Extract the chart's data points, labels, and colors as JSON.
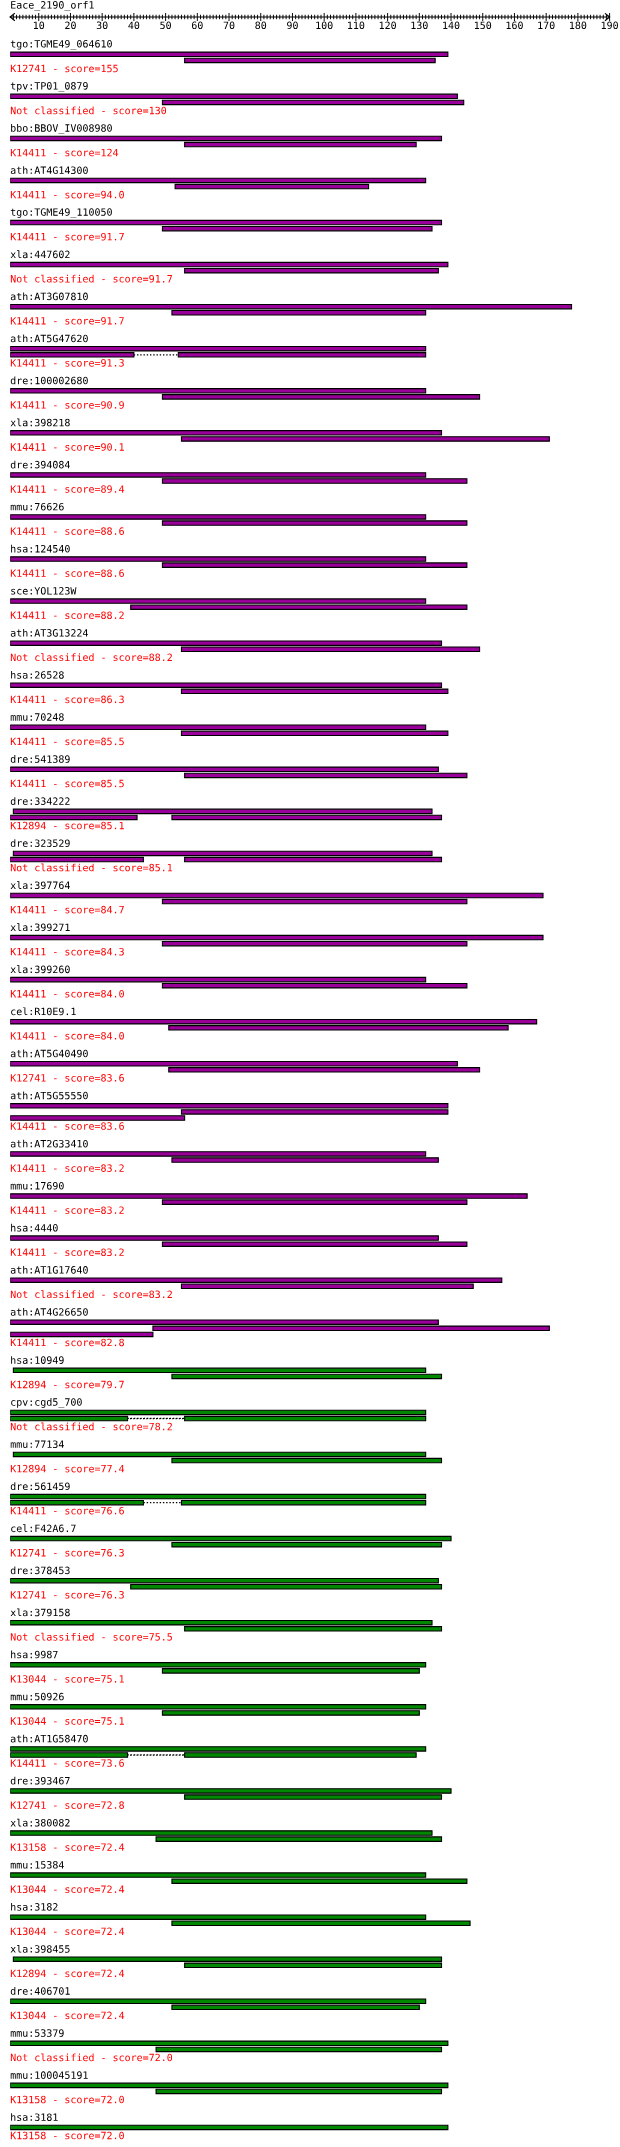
{
  "chart_data": {
    "type": "bar",
    "orientation": "horizontal",
    "title": "Eace_2190_orf1",
    "categories": [
      "tgo:TGME49_064610",
      "tpv:TP01_0879",
      "bbo:BBOV_IV008980",
      "ath:AT4G14300",
      "tgo:TGME49_110050",
      "xla:447602",
      "ath:AT3G07810",
      "ath:AT5G47620",
      "dre:100002680",
      "xla:398218",
      "dre:394084",
      "mmu:76626",
      "hsa:124540",
      "sce:YOL123W",
      "ath:AT3G13224",
      "hsa:26528",
      "mmu:70248",
      "dre:541389",
      "dre:334222",
      "dre:323529",
      "xla:397764",
      "xla:399271",
      "xla:399260",
      "cel:R10E9.1",
      "ath:AT5G40490",
      "ath:AT5G55550",
      "ath:AT2G33410",
      "mmu:17690",
      "hsa:4440",
      "ath:AT1G17640",
      "ath:AT4G26650",
      "hsa:10949",
      "cpv:cgd5_700",
      "mmu:77134",
      "dre:561459",
      "cel:F42A6.7",
      "dre:378453",
      "xla:379158",
      "hsa:9987",
      "mmu:50926",
      "ath:AT1G58470",
      "dre:393467",
      "xla:380082",
      "mmu:15384",
      "hsa:3182",
      "xla:398455",
      "dre:406701",
      "mmu:53379",
      "mmu:100045191",
      "hsa:3181"
    ],
    "series": [
      {
        "base": [
          1,
          1,
          1,
          1,
          1,
          1,
          1,
          1,
          1,
          1,
          1,
          1,
          1,
          1,
          1,
          1,
          1,
          1,
          2,
          2,
          1,
          1,
          1,
          1,
          1,
          1,
          1,
          1,
          1,
          1,
          1,
          2,
          1,
          2,
          1,
          1,
          1,
          1,
          1,
          1,
          1,
          1,
          1,
          1,
          1,
          2,
          1,
          1,
          1,
          1
        ],
        "values": [
          138,
          141,
          136,
          131,
          136,
          138,
          177,
          131,
          131,
          136,
          131,
          131,
          131,
          131,
          136,
          136,
          131,
          135,
          132,
          132,
          168,
          168,
          131,
          166,
          141,
          138,
          131,
          163,
          135,
          155,
          135,
          130,
          131,
          130,
          131,
          139,
          135,
          133,
          131,
          131,
          131,
          139,
          133,
          131,
          131,
          135,
          131,
          138,
          138,
          138
        ],
        "colors": [
          "#990099",
          "#990099",
          "#990099",
          "#990099",
          "#990099",
          "#990099",
          "#990099",
          "#990099",
          "#990099",
          "#990099",
          "#990099",
          "#990099",
          "#990099",
          "#990099",
          "#990099",
          "#990099",
          "#990099",
          "#990099",
          "#990099",
          "#990099",
          "#990099",
          "#990099",
          "#990099",
          "#990099",
          "#990099",
          "#990099",
          "#990099",
          "#990099",
          "#990099",
          "#990099",
          "#990099",
          "#008800",
          "#008800",
          "#008800",
          "#008800",
          "#008800",
          "#008800",
          "#008800",
          "#008800",
          "#008800",
          "#008800",
          "#008800",
          "#008800",
          "#008800",
          "#008800",
          "#008800",
          "#008800",
          "#008800",
          "#008800",
          "#008800"
        ]
      },
      {
        "base": [
          56,
          49,
          56,
          53,
          49,
          56,
          52,
          54,
          49,
          55,
          49,
          49,
          49,
          39,
          55,
          55,
          55,
          56,
          52,
          56,
          49,
          49,
          49,
          51,
          51,
          55,
          52,
          49,
          49,
          55,
          46,
          52,
          56,
          52,
          55,
          52,
          39,
          56,
          49,
          49,
          56,
          56,
          47,
          52,
          52,
          56,
          52,
          47,
          47,
          null
        ],
        "values": [
          79,
          95,
          73,
          61,
          85,
          80,
          80,
          78,
          100,
          116,
          96,
          96,
          96,
          106,
          94,
          84,
          84,
          89,
          85,
          81,
          96,
          96,
          96,
          107,
          98,
          84,
          84,
          96,
          96,
          92,
          125,
          85,
          76,
          85,
          77,
          85,
          98,
          81,
          81,
          81,
          73,
          81,
          90,
          93,
          94,
          81,
          78,
          90,
          90,
          null
        ],
        "colors": [
          "#990099",
          "#990099",
          "#990099",
          "#990099",
          "#990099",
          "#990099",
          "#990099",
          "#990099",
          "#990099",
          "#990099",
          "#990099",
          "#990099",
          "#990099",
          "#990099",
          "#990099",
          "#990099",
          "#990099",
          "#990099",
          "#990099",
          "#990099",
          "#990099",
          "#990099",
          "#990099",
          "#990099",
          "#990099",
          "#990099",
          "#990099",
          "#990099",
          "#990099",
          "#990099",
          "#990099",
          "#008800",
          "#008800",
          "#008800",
          "#008800",
          "#008800",
          "#008800",
          "#008800",
          "#008800",
          "#008800",
          "#008800",
          "#008800",
          "#008800",
          "#008800",
          "#008800",
          "#008800",
          "#008800",
          "#008800",
          "#008800",
          "#008800"
        ]
      },
      {
        "base": [
          null,
          null,
          null,
          null,
          null,
          null,
          null,
          1,
          null,
          null,
          null,
          null,
          null,
          null,
          null,
          null,
          null,
          null,
          1,
          1,
          null,
          null,
          null,
          null,
          null,
          null,
          null,
          null,
          null,
          null,
          null,
          null,
          1,
          null,
          1,
          null,
          null,
          null,
          null,
          null,
          1,
          null,
          null,
          null,
          null,
          null,
          null,
          null,
          null,
          null
        ],
        "values": [
          null,
          null,
          null,
          null,
          null,
          null,
          null,
          39,
          null,
          null,
          null,
          null,
          null,
          null,
          null,
          null,
          null,
          null,
          40,
          42,
          null,
          null,
          null,
          null,
          null,
          null,
          null,
          null,
          null,
          null,
          null,
          null,
          37,
          null,
          42,
          null,
          null,
          null,
          null,
          null,
          37,
          null,
          null,
          null,
          null,
          null,
          null,
          null,
          null,
          null
        ],
        "colors": [
          "#990099",
          "#990099",
          "#990099",
          "#990099",
          "#990099",
          "#990099",
          "#990099",
          "#990099",
          "#990099",
          "#990099",
          "#990099",
          "#990099",
          "#990099",
          "#990099",
          "#990099",
          "#990099",
          "#990099",
          "#990099",
          "#990099",
          "#990099",
          "#990099",
          "#990099",
          "#990099",
          "#990099",
          "#990099",
          "#990099",
          "#990099",
          "#990099",
          "#990099",
          "#990099",
          "#990099",
          "#008800",
          "#008800",
          "#008800",
          "#008800",
          "#008800",
          "#008800",
          "#008800",
          "#008800",
          "#008800",
          "#008800",
          "#008800",
          "#008800",
          "#008800",
          "#008800",
          "#008800",
          "#008800",
          "#008800",
          "#008800",
          "#008800"
        ]
      },
      {
        "line_style": "dotted",
        "color": "#000000",
        "base": [
          null,
          null,
          null,
          null,
          null,
          null,
          null,
          40,
          null,
          null,
          null,
          null,
          null,
          null,
          null,
          null,
          null,
          null,
          null,
          null,
          null,
          null,
          null,
          null,
          null,
          null,
          null,
          null,
          null,
          null,
          null,
          null,
          38,
          null,
          43,
          null,
          null,
          null,
          null,
          null,
          38,
          null,
          null,
          null,
          null,
          null,
          null,
          null,
          null,
          null
        ],
        "values": [
          null,
          null,
          null,
          null,
          null,
          null,
          null,
          14,
          null,
          null,
          null,
          null,
          null,
          null,
          null,
          null,
          null,
          null,
          null,
          null,
          null,
          null,
          null,
          null,
          null,
          null,
          null,
          null,
          null,
          null,
          null,
          null,
          18,
          null,
          12,
          null,
          null,
          null,
          null,
          null,
          18,
          null,
          null,
          null,
          null,
          null,
          null,
          null,
          null,
          null
        ]
      },
      {
        "color": "#990099",
        "base": [
          null,
          null,
          null,
          null,
          null,
          null,
          null,
          null,
          null,
          null,
          null,
          null,
          null,
          null,
          null,
          null,
          null,
          null,
          null,
          null,
          null,
          null,
          null,
          null,
          null,
          1,
          null,
          null,
          null,
          null,
          1,
          null,
          null,
          null,
          null,
          null,
          null,
          null,
          null,
          null,
          null,
          null,
          null,
          null,
          null,
          null,
          null,
          null,
          null,
          null
        ],
        "values": [
          null,
          null,
          null,
          null,
          null,
          null,
          null,
          null,
          null,
          null,
          null,
          null,
          null,
          null,
          null,
          null,
          null,
          null,
          null,
          null,
          null,
          null,
          null,
          null,
          null,
          55,
          null,
          null,
          null,
          null,
          45,
          null,
          null,
          null,
          null,
          null,
          null,
          null,
          null,
          null,
          null,
          null,
          null,
          null,
          null,
          null,
          null,
          null,
          null,
          null
        ]
      }
    ],
    "xlim": [
      1,
      190
    ],
    "xticks": [
      {
        "value": 2,
        "label": null
      },
      {
        "value": 3,
        "label": null
      },
      {
        "value": 4,
        "label": null
      },
      {
        "value": 5,
        "label": null
      },
      {
        "value": 6,
        "label": null
      },
      {
        "value": 7,
        "label": null
      },
      {
        "value": 8,
        "label": null
      },
      {
        "value": 9,
        "label": null
      },
      10,
      {
        "value": 11,
        "label": null
      },
      {
        "value": 12,
        "label": null
      },
      {
        "value": 13,
        "label": null
      },
      {
        "value": 14,
        "label": null
      },
      {
        "value": 15,
        "label": null
      },
      {
        "value": 16,
        "label": null
      },
      {
        "value": 17,
        "label": null
      },
      {
        "value": 18,
        "label": null
      },
      {
        "value": 19,
        "label": null
      },
      20,
      {
        "value": 21,
        "label": null
      },
      {
        "value": 22,
        "label": null
      },
      {
        "value": 23,
        "label": null
      },
      {
        "value": 24,
        "label": null
      },
      {
        "value": 25,
        "label": null
      },
      {
        "value": 26,
        "label": null
      },
      {
        "value": 27,
        "label": null
      },
      {
        "value": 28,
        "label": null
      },
      {
        "value": 29,
        "label": null
      },
      30,
      {
        "value": 31,
        "label": null
      },
      {
        "value": 32,
        "label": null
      },
      {
        "value": 33,
        "label": null
      },
      {
        "value": 34,
        "label": null
      },
      {
        "value": 35,
        "label": null
      },
      {
        "value": 36,
        "label": null
      },
      {
        "value": 37,
        "label": null
      },
      {
        "value": 38,
        "label": null
      },
      {
        "value": 39,
        "label": null
      },
      40,
      {
        "value": 41,
        "label": null
      },
      {
        "value": 42,
        "label": null
      },
      {
        "value": 43,
        "label": null
      },
      {
        "value": 44,
        "label": null
      },
      {
        "value": 45,
        "label": null
      },
      {
        "value": 46,
        "label": null
      },
      {
        "value": 47,
        "label": null
      },
      {
        "value": 48,
        "label": null
      },
      {
        "value": 49,
        "label": null
      },
      50,
      {
        "value": 51,
        "label": null
      },
      {
        "value": 52,
        "label": null
      },
      {
        "value": 53,
        "label": null
      },
      {
        "value": 54,
        "label": null
      },
      {
        "value": 55,
        "label": null
      },
      {
        "value": 56,
        "label": null
      },
      {
        "value": 57,
        "label": null
      },
      {
        "value": 58,
        "label": null
      },
      {
        "value": 59,
        "label": null
      },
      60,
      {
        "value": 61,
        "label": null
      },
      {
        "value": 62,
        "label": null
      },
      {
        "value": 63,
        "label": null
      },
      {
        "value": 64,
        "label": null
      },
      {
        "value": 65,
        "label": null
      },
      {
        "value": 66,
        "label": null
      },
      {
        "value": 67,
        "label": null
      },
      {
        "value": 68,
        "label": null
      },
      {
        "value": 69,
        "label": null
      },
      70,
      {
        "value": 71,
        "label": null
      },
      {
        "value": 72,
        "label": null
      },
      {
        "value": 73,
        "label": null
      },
      {
        "value": 74,
        "label": null
      },
      {
        "value": 75,
        "label": null
      },
      {
        "value": 76,
        "label": null
      },
      {
        "value": 77,
        "label": null
      },
      {
        "value": 78,
        "label": null
      },
      {
        "value": 79,
        "label": null
      },
      80,
      {
        "value": 81,
        "label": null
      },
      {
        "value": 82,
        "label": null
      },
      {
        "value": 83,
        "label": null
      },
      {
        "value": 84,
        "label": null
      },
      {
        "value": 85,
        "label": null
      },
      {
        "value": 86,
        "label": null
      },
      {
        "value": 87,
        "label": null
      },
      {
        "value": 88,
        "label": null
      },
      {
        "value": 89,
        "label": null
      },
      90,
      {
        "value": 91,
        "label": null
      },
      {
        "value": 92,
        "label": null
      },
      {
        "value": 93,
        "label": null
      },
      {
        "value": 94,
        "label": null
      },
      {
        "value": 95,
        "label": null
      },
      {
        "value": 96,
        "label": null
      },
      {
        "value": 97,
        "label": null
      },
      {
        "value": 98,
        "label": null
      },
      {
        "value": 99,
        "label": null
      },
      100,
      {
        "value": 101,
        "label": null
      },
      {
        "value": 102,
        "label": null
      },
      {
        "value": 103,
        "label": null
      },
      {
        "value": 104,
        "label": null
      },
      {
        "value": 105,
        "label": null
      },
      {
        "value": 106,
        "label": null
      },
      {
        "value": 107,
        "label": null
      },
      {
        "value": 108,
        "label": null
      },
      {
        "value": 109,
        "label": null
      },
      110,
      {
        "value": 111,
        "label": null
      },
      {
        "value": 112,
        "label": null
      },
      {
        "value": 113,
        "label": null
      },
      {
        "value": 114,
        "label": null
      },
      {
        "value": 115,
        "label": null
      },
      {
        "value": 116,
        "label": null
      },
      {
        "value": 117,
        "label": null
      },
      {
        "value": 118,
        "label": null
      },
      {
        "value": 119,
        "label": null
      },
      120,
      {
        "value": 121,
        "label": null
      },
      {
        "value": 122,
        "label": null
      },
      {
        "value": 123,
        "label": null
      },
      {
        "value": 124,
        "label": null
      },
      {
        "value": 125,
        "label": null
      },
      {
        "value": 126,
        "label": null
      },
      {
        "value": 127,
        "label": null
      },
      {
        "value": 128,
        "label": null
      },
      {
        "value": 129,
        "label": null
      },
      130,
      {
        "value": 131,
        "label": null
      },
      {
        "value": 132,
        "label": null
      },
      {
        "value": 133,
        "label": null
      },
      {
        "value": 134,
        "label": null
      },
      {
        "value": 135,
        "label": null
      },
      {
        "value": 136,
        "label": null
      },
      {
        "value": 137,
        "label": null
      },
      {
        "value": 138,
        "label": null
      },
      {
        "value": 139,
        "label": null
      },
      140,
      {
        "value": 141,
        "label": null
      },
      {
        "value": 142,
        "label": null
      },
      {
        "value": 143,
        "label": null
      },
      {
        "value": 144,
        "label": null
      },
      {
        "value": 145,
        "label": null
      },
      {
        "value": 146,
        "label": null
      },
      {
        "value": 147,
        "label": null
      },
      {
        "value": 148,
        "label": null
      },
      {
        "value": 149,
        "label": null
      },
      150,
      {
        "value": 151,
        "label": null
      },
      {
        "value": 152,
        "label": null
      },
      {
        "value": 153,
        "label": null
      },
      {
        "value": 154,
        "label": null
      },
      {
        "value": 155,
        "label": null
      },
      {
        "value": 156,
        "label": null
      },
      {
        "value": 157,
        "label": null
      },
      {
        "value": 158,
        "label": null
      },
      {
        "value": 159,
        "label": null
      },
      160,
      {
        "value": 161,
        "label": null
      },
      {
        "value": 162,
        "label": null
      },
      {
        "value": 163,
        "label": null
      },
      {
        "value": 164,
        "label": null
      },
      {
        "value": 165,
        "label": null
      },
      {
        "value": 166,
        "label": null
      },
      {
        "value": 167,
        "label": null
      },
      {
        "value": 168,
        "label": null
      },
      {
        "value": 169,
        "label": null
      },
      170,
      {
        "value": 171,
        "label": null
      },
      {
        "value": 172,
        "label": null
      },
      {
        "value": 173,
        "label": null
      },
      {
        "value": 174,
        "label": null
      },
      {
        "value": 175,
        "label": null
      },
      {
        "value": 176,
        "label": null
      },
      {
        "value": 177,
        "label": null
      },
      {
        "value": 178,
        "label": null
      },
      {
        "value": 179,
        "label": null
      },
      180,
      {
        "value": 181,
        "label": null
      },
      {
        "value": 182,
        "label": null
      },
      {
        "value": 183,
        "label": null
      },
      {
        "value": 184,
        "label": null
      },
      {
        "value": 185,
        "label": null
      },
      {
        "value": 186,
        "label": null
      },
      {
        "value": 187,
        "label": null
      },
      {
        "value": 188,
        "label": null
      },
      {
        "value": 189,
        "label": null
      },
      190
    ],
    "annotations": [
      "K12741 - score=155",
      "Not classified - score=130",
      "K14411 - score=124",
      "K14411 - score=94.0",
      "K14411 - score=91.7",
      "Not classified - score=91.7",
      "K14411 - score=91.7",
      "K14411 - score=91.3",
      "K14411 - score=90.9",
      "K14411 - score=90.1",
      "K14411 - score=89.4",
      "K14411 - score=88.6",
      "K14411 - score=88.6",
      "K14411 - score=88.2",
      "Not classified - score=88.2",
      "K14411 - score=86.3",
      "K14411 - score=85.5",
      "K14411 - score=85.5",
      "K12894 - score=85.1",
      "Not classified - score=85.1",
      "K14411 - score=84.7",
      "K14411 - score=84.3",
      "K14411 - score=84.0",
      "K14411 - score=84.0",
      "K12741 - score=83.6",
      "K14411 - score=83.6",
      "K14411 - score=83.2",
      "K14411 - score=83.2",
      "K14411 - score=83.2",
      "Not classified - score=83.2",
      "K14411 - score=82.8",
      "K12894 - score=79.7",
      "Not classified - score=78.2",
      "K12894 - score=77.4",
      "K14411 - score=76.6",
      "K12741 - score=76.3",
      "K12741 - score=76.3",
      "Not classified - score=75.5",
      "K13044 - score=75.1",
      "K13044 - score=75.1",
      "K14411 - score=73.6",
      "K12741 - score=72.8",
      "K13158 - score=72.4",
      "K13044 - score=72.4",
      "K13044 - score=72.4",
      "K12894 - score=72.4",
      "K13044 - score=72.4",
      "Not classified - score=72.0",
      "K13158 - score=72.0",
      "K13158 - score=72.0"
    ]
  }
}
